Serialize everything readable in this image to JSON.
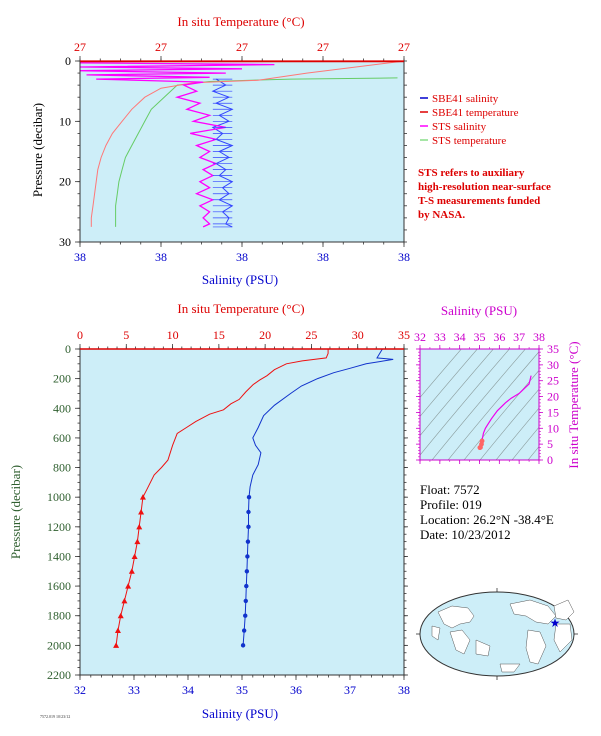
{
  "top_chart": {
    "type": "line",
    "top_axis_title": "In situ Temperature (°C)",
    "top_tick_labels": [
      "27",
      "27",
      "27",
      "27",
      "27"
    ],
    "left_axis_title": "Pressure (decibar)",
    "left_tick_labels": [
      "0",
      "10",
      "20",
      "30"
    ],
    "bottom_axis_title": "Salinity (PSU)",
    "bottom_tick_labels": [
      "38",
      "38",
      "38",
      "38",
      "38"
    ],
    "legend": [
      {
        "label": "SBE41 salinity",
        "color": "#0000cc"
      },
      {
        "label": "SBE41 temperature",
        "color": "#dd0000"
      },
      {
        "label": "STS salinity",
        "color": "#ff00ff"
      },
      {
        "label": "STS temperature",
        "color": "#88dd88"
      }
    ],
    "note": [
      "STS refers to auxiliary",
      "high-resolution near-surface",
      "T-S measurements funded",
      "by NASA."
    ],
    "ylim": [
      0,
      30
    ]
  },
  "main_chart": {
    "type": "line",
    "top_axis_title": "In situ Temperature (°C)",
    "top_tick_labels": [
      "0",
      "5",
      "10",
      "15",
      "20",
      "25",
      "30",
      "35"
    ],
    "left_axis_title": "Pressure (decibar)",
    "left_tick_labels": [
      "0",
      "200",
      "400",
      "600",
      "800",
      "1000",
      "1200",
      "1400",
      "1600",
      "1800",
      "2000",
      "2200"
    ],
    "bottom_axis_title": "Salinity (PSU)",
    "bottom_tick_labels": [
      "32",
      "33",
      "34",
      "35",
      "36",
      "37",
      "38"
    ],
    "xlim_temperature": [
      0,
      35
    ],
    "xlim_salinity": [
      32,
      38
    ],
    "ylim": [
      0,
      2200
    ]
  },
  "ts_chart": {
    "type": "line",
    "top_axis_title": "Salinity (PSU)",
    "top_tick_labels": [
      "32",
      "33",
      "34",
      "35",
      "36",
      "37",
      "38"
    ],
    "right_axis_title": "In situ Temperature (°C)",
    "right_tick_labels": [
      "0",
      "5",
      "10",
      "15",
      "20",
      "25",
      "30",
      "35"
    ],
    "xlim": [
      32,
      38
    ],
    "ylim": [
      0,
      35
    ]
  },
  "float_info": {
    "float": "Float: 7572",
    "profile": "Profile: 019",
    "location": "Location: 26.2°N -38.4°E",
    "date": "Date: 10/23/2012"
  },
  "footer_text": "7572.019 10/23/12",
  "chart_data": [
    {
      "type": "line",
      "name": "Main profile",
      "series": [
        {
          "name": "temperature",
          "x_axis": "temperature",
          "points": [
            [
              26.8,
              0
            ],
            [
              26.8,
              30
            ],
            [
              26.6,
              60
            ],
            [
              24,
              80
            ],
            [
              22.3,
              100
            ],
            [
              21,
              140
            ],
            [
              20.2,
              180
            ],
            [
              19.4,
              210
            ],
            [
              18.7,
              240
            ],
            [
              17.9,
              290
            ],
            [
              17.2,
              340
            ],
            [
              16.3,
              370
            ],
            [
              15.5,
              410
            ],
            [
              14,
              440
            ],
            [
              12.5,
              490
            ],
            [
              11.5,
              530
            ],
            [
              10.5,
              570
            ],
            [
              10,
              650
            ],
            [
              9.5,
              750
            ],
            [
              8.8,
              800
            ],
            [
              8,
              850
            ],
            [
              7.2,
              950
            ],
            [
              6.8,
              1000
            ],
            [
              6.6,
              1100
            ],
            [
              6.4,
              1200
            ],
            [
              6.2,
              1300
            ],
            [
              5.9,
              1400
            ],
            [
              5.6,
              1500
            ],
            [
              5.2,
              1600
            ],
            [
              4.8,
              1700
            ],
            [
              4.4,
              1800
            ],
            [
              4.1,
              1900
            ],
            [
              3.9,
              2000
            ]
          ],
          "markers_from": 1000
        },
        {
          "name": "salinity",
          "x_axis": "salinity",
          "points": [
            [
              37.6,
              0
            ],
            [
              37.5,
              60
            ],
            [
              37.8,
              70
            ],
            [
              37.3,
              100
            ],
            [
              37.0,
              130
            ],
            [
              36.7,
              160
            ],
            [
              36.4,
              200
            ],
            [
              36.1,
              250
            ],
            [
              35.9,
              300
            ],
            [
              35.6,
              380
            ],
            [
              35.4,
              450
            ],
            [
              35.3,
              530
            ],
            [
              35.2,
              600
            ],
            [
              35.25,
              650
            ],
            [
              35.35,
              700
            ],
            [
              35.3,
              780
            ],
            [
              35.2,
              850
            ],
            [
              35.15,
              930
            ],
            [
              35.13,
              1000
            ],
            [
              35.12,
              1100
            ],
            [
              35.12,
              1200
            ],
            [
              35.11,
              1300
            ],
            [
              35.1,
              1400
            ],
            [
              35.09,
              1500
            ],
            [
              35.08,
              1600
            ],
            [
              35.07,
              1700
            ],
            [
              35.06,
              1800
            ],
            [
              35.04,
              1900
            ],
            [
              35.02,
              2000
            ]
          ],
          "markers_from": 1000
        }
      ]
    },
    {
      "type": "line",
      "name": "T-S diagram",
      "series": [
        {
          "name": "T-S",
          "points": [
            [
              37.6,
              26.6
            ],
            [
              37.5,
              24
            ],
            [
              37.0,
              21
            ],
            [
              36.6,
              19.5
            ],
            [
              36.3,
              18
            ],
            [
              35.9,
              15.5
            ],
            [
              35.6,
              13
            ],
            [
              35.4,
              11
            ],
            [
              35.3,
              10
            ],
            [
              35.2,
              8.5
            ],
            [
              35.15,
              7
            ],
            [
              35.13,
              6
            ],
            [
              35.1,
              5
            ],
            [
              35.05,
              4
            ],
            [
              35.02,
              3.9
            ]
          ]
        }
      ]
    },
    {
      "type": "line",
      "name": "Near-surface",
      "series": [
        {
          "name": "SBE41 salinity",
          "points": [
            [
              0.42,
              3
            ],
            [
              0.45,
              4
            ],
            [
              0.41,
              5
            ],
            [
              0.46,
              6
            ],
            [
              0.42,
              7
            ],
            [
              0.47,
              8
            ],
            [
              0.43,
              9
            ],
            [
              0.46,
              10
            ],
            [
              0.41,
              11
            ],
            [
              0.44,
              12
            ],
            [
              0.42,
              13
            ],
            [
              0.47,
              14
            ],
            [
              0.43,
              15
            ],
            [
              0.46,
              16
            ],
            [
              0.42,
              17
            ],
            [
              0.45,
              18
            ],
            [
              0.43,
              19
            ],
            [
              0.47,
              20
            ],
            [
              0.44,
              21
            ],
            [
              0.46,
              22
            ],
            [
              0.43,
              23
            ],
            [
              0.47,
              24
            ],
            [
              0.44,
              25
            ],
            [
              0.46,
              26
            ],
            [
              0.45,
              27
            ],
            [
              0.47,
              27.5
            ]
          ]
        },
        {
          "name": "STS temperature",
          "points": [
            [
              0.98,
              2.8
            ],
            [
              0.65,
              3
            ],
            [
              0.4,
              3.4
            ],
            [
              0.3,
              4
            ],
            [
              0.26,
              6
            ],
            [
              0.22,
              8
            ],
            [
              0.2,
              10
            ],
            [
              0.18,
              12
            ],
            [
              0.16,
              14
            ],
            [
              0.14,
              16
            ],
            [
              0.13,
              18
            ],
            [
              0.12,
              20
            ],
            [
              0.115,
              22
            ],
            [
              0.11,
              24
            ],
            [
              0.11,
              26
            ],
            [
              0.11,
              27.5
            ]
          ]
        },
        {
          "name": "SBE41 temperature",
          "points": [
            [
              1,
              0
            ],
            [
              0.7,
              2
            ],
            [
              0.55,
              3.2
            ],
            [
              0.35,
              3.6
            ],
            [
              0.25,
              4.5
            ],
            [
              0.2,
              6
            ],
            [
              0.16,
              8
            ],
            [
              0.13,
              10
            ],
            [
              0.1,
              12
            ],
            [
              0.08,
              14
            ],
            [
              0.065,
              16
            ],
            [
              0.055,
              18
            ],
            [
              0.05,
              20
            ],
            [
              0.045,
              22
            ],
            [
              0.04,
              24
            ],
            [
              0.035,
              26
            ],
            [
              0.035,
              27.5
            ]
          ]
        },
        {
          "name": "STS salinity",
          "points": [
            [
              0.0,
              0.3
            ],
            [
              0.6,
              0.6
            ],
            [
              0.0,
              1
            ],
            [
              0.5,
              1.3
            ],
            [
              0.0,
              1.6
            ],
            [
              0.45,
              2
            ],
            [
              0.02,
              2.3
            ],
            [
              0.4,
              2.7
            ],
            [
              0.05,
              3
            ],
            [
              0.38,
              3.5
            ],
            [
              0.32,
              4
            ],
            [
              0.36,
              5
            ],
            [
              0.3,
              6
            ],
            [
              0.37,
              7
            ],
            [
              0.33,
              8
            ],
            [
              0.4,
              9
            ],
            [
              0.35,
              10
            ],
            [
              0.45,
              11
            ],
            [
              0.34,
              12
            ],
            [
              0.42,
              13
            ],
            [
              0.36,
              14
            ],
            [
              0.4,
              15
            ],
            [
              0.37,
              16
            ],
            [
              0.42,
              17
            ],
            [
              0.38,
              18
            ],
            [
              0.41,
              19
            ],
            [
              0.37,
              20
            ],
            [
              0.4,
              21
            ],
            [
              0.36,
              22
            ],
            [
              0.41,
              23
            ],
            [
              0.37,
              24
            ],
            [
              0.4,
              25
            ],
            [
              0.38,
              26
            ],
            [
              0.4,
              27
            ],
            [
              0.38,
              27.5
            ]
          ]
        }
      ]
    }
  ]
}
